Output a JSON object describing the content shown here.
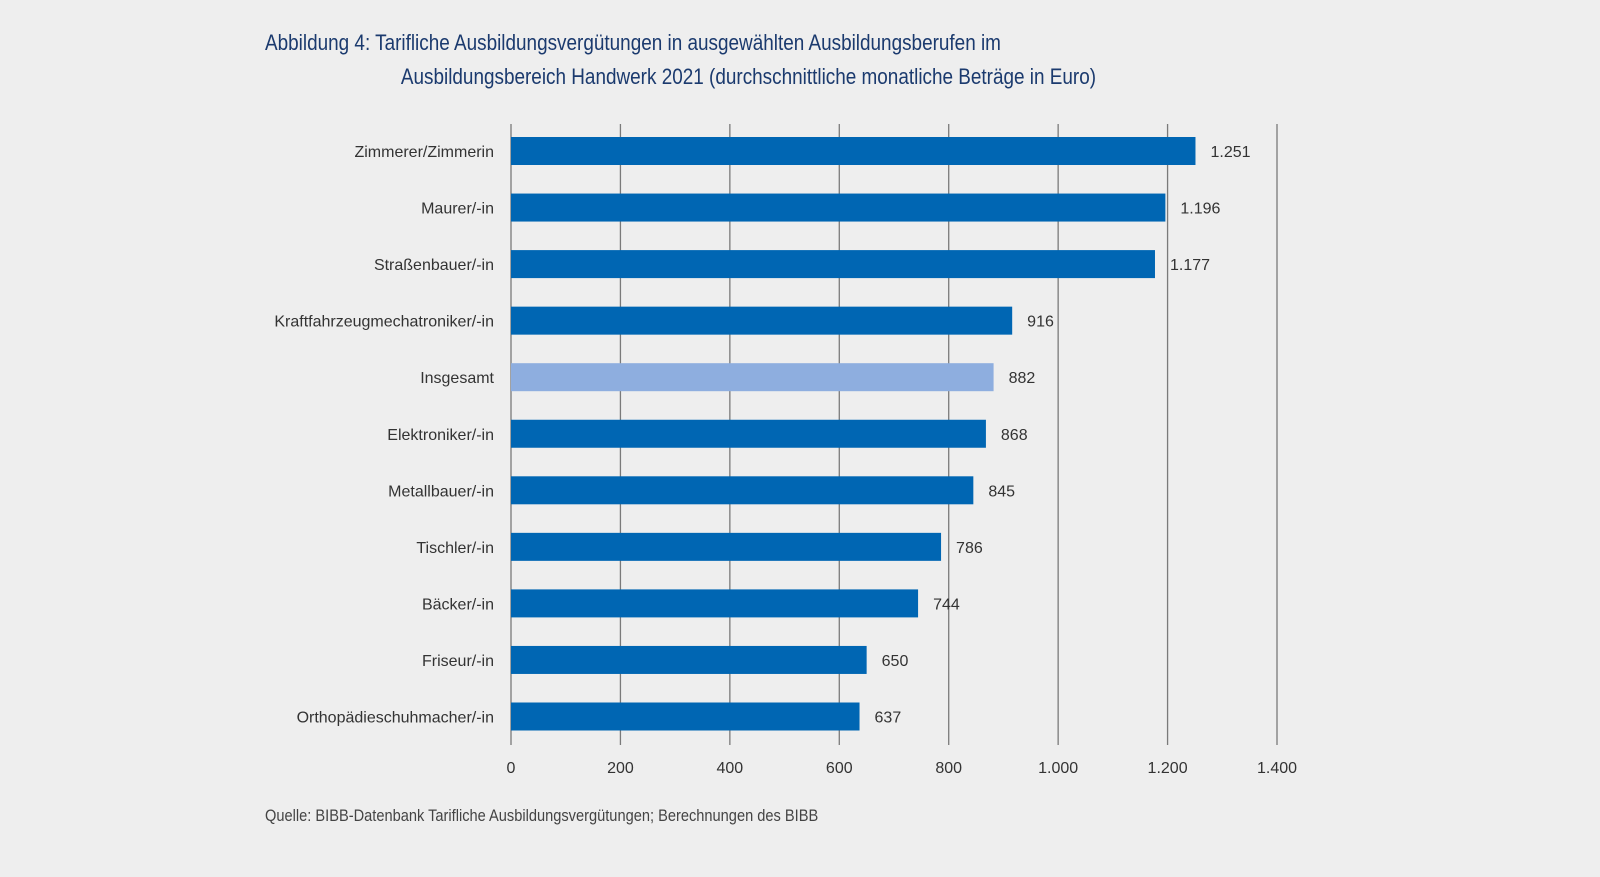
{
  "title": {
    "line1": "Abbildung 4: Tarifliche Ausbildungsvergütungen in ausgewählten Ausbildungsberufen im",
    "line2": "Ausbildungsbereich Handwerk 2021 (durchschnittliche monatliche Beträge in Euro)"
  },
  "source": "Quelle: BIBB-Datenbank Tarifliche Ausbildungsvergütungen; Berechnungen des BIBB",
  "colors": {
    "bar": "#0066b3",
    "highlight_bar": "#8eaedf",
    "grid": "#7a7a7a",
    "title": "#1b3a6e",
    "background": "#eeeeee"
  },
  "chart_data": {
    "type": "bar",
    "orientation": "horizontal",
    "title": "Abbildung 4: Tarifliche Ausbildungsvergütungen in ausgewählten Ausbildungsberufen im Ausbildungsbereich Handwerk 2021 (durchschnittliche monatliche Beträge in Euro)",
    "xlabel": "",
    "ylabel": "",
    "categories": [
      "Zimmerer/Zimmerin",
      "Maurer/-in",
      "Straßenbauer/-in",
      "Kraftfahrzeugmechatroniker/-in",
      "Insgesamt",
      "Elektroniker/-in",
      "Metallbauer/-in",
      "Tischler/-in",
      "Bäcker/-in",
      "Friseur/-in",
      "Orthopädieschuhmacher/-in"
    ],
    "values": [
      1251,
      1196,
      1177,
      916,
      882,
      868,
      845,
      786,
      744,
      650,
      637
    ],
    "value_labels": [
      "1.251",
      "1.196",
      "1.177",
      "916",
      "882",
      "868",
      "845",
      "786",
      "744",
      "650",
      "637"
    ],
    "highlighted": [
      "Insgesamt"
    ],
    "xlim": [
      0,
      1400
    ],
    "xticks": [
      0,
      200,
      400,
      600,
      800,
      1000,
      1200,
      1400
    ],
    "xtick_labels": [
      "0",
      "200",
      "400",
      "600",
      "800",
      "1.000",
      "1.200",
      "1.400"
    ],
    "grid": true,
    "legend": "none"
  }
}
